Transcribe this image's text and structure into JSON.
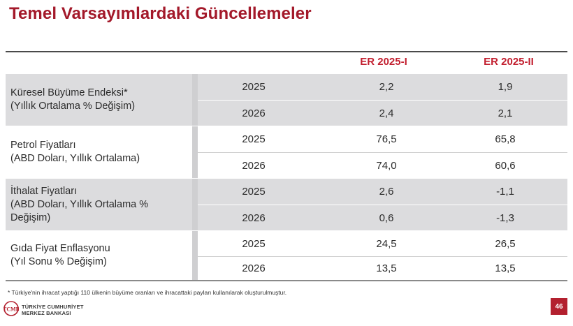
{
  "title": "Temel Varsayımlardaki Güncellemeler",
  "columns": {
    "er1": "ER 2025-I",
    "er2": "ER 2025-II"
  },
  "groups": [
    {
      "label_line1": "Küresel Büyüme Endeksi*",
      "label_line2": "(Yıllık Ortalama % Değişim)",
      "label_line3": "",
      "rows": [
        {
          "year": "2025",
          "v1": "2,2",
          "v2": "1,9"
        },
        {
          "year": "2026",
          "v1": "2,4",
          "v2": "2,1"
        }
      ]
    },
    {
      "label_line1": "Petrol Fiyatları",
      "label_line2": "(ABD Doları, Yıllık Ortalama)",
      "label_line3": "",
      "rows": [
        {
          "year": "2025",
          "v1": "76,5",
          "v2": "65,8"
        },
        {
          "year": "2026",
          "v1": "74,0",
          "v2": "60,6"
        }
      ]
    },
    {
      "label_line1": "İthalat Fiyatları",
      "label_line2": "(ABD Doları, Yıllık Ortalama %",
      "label_line3": "Değişim)",
      "rows": [
        {
          "year": "2025",
          "v1": "2,6",
          "v2": "-1,1"
        },
        {
          "year": "2026",
          "v1": "0,6",
          "v2": "-1,3"
        }
      ]
    },
    {
      "label_line1": "Gıda Fiyat Enflasyonu",
      "label_line2": "(Yıl Sonu % Değişim)",
      "label_line3": "",
      "rows": [
        {
          "year": "2025",
          "v1": "24,5",
          "v2": "26,5"
        },
        {
          "year": "2026",
          "v1": "13,5",
          "v2": "13,5"
        }
      ]
    }
  ],
  "footnote": "* Türkiye'nin ihracat yaptığı 110 ülkenin büyüme oranları ve ihracattaki payları kullanılarak oluşturulmuştur.",
  "logo": {
    "line1": "TÜRKİYE CUMHURİYET",
    "line2": "MERKEZ BANKASI",
    "monogram": "TCMB"
  },
  "page_number": "46",
  "colors": {
    "title": "#a3192a",
    "header": "#c21f2f",
    "shade": "#dcdcde",
    "page_badge": "#b3202f"
  }
}
